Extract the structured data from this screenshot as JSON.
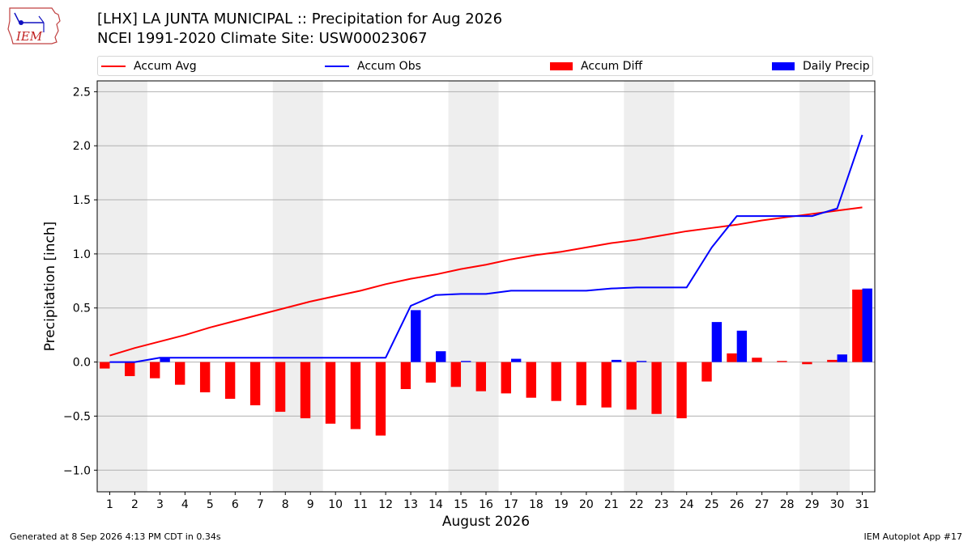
{
  "header": {
    "title_line1": "[LHX] LA JUNTA MUNICIPAL :: Precipitation for Aug 2026",
    "title_line2": "NCEI 1991-2020 Climate Site: USW00023067",
    "logo_text": "IEM"
  },
  "legend": {
    "accum_avg": "Accum Avg",
    "accum_obs": "Accum Obs",
    "accum_diff": "Accum Diff",
    "daily_precip": "Daily Precip"
  },
  "footer": {
    "generated": "Generated at 8 Sep 2026 4:13 PM CDT in 0.34s",
    "app": "IEM Autoplot App #17"
  },
  "colors": {
    "avg": "#ff0000",
    "obs": "#0000ff",
    "diff": "#ff0000",
    "daily": "#0000ff",
    "weekend_band": "#eeeeee",
    "grid": "#b0b0b0"
  },
  "chart_data": {
    "type": "bar",
    "xlabel": "August 2026",
    "ylabel": "Precipitation [inch]",
    "ylim": [
      -1.2,
      2.6
    ],
    "yticks": [
      -1.0,
      -0.5,
      0.0,
      0.5,
      1.0,
      1.5,
      2.0,
      2.5
    ],
    "ytick_labels": [
      "−1.0",
      "−0.5",
      "0.0",
      "0.5",
      "1.0",
      "1.5",
      "2.0",
      "2.5"
    ],
    "days": [
      1,
      2,
      3,
      4,
      5,
      6,
      7,
      8,
      9,
      10,
      11,
      12,
      13,
      14,
      15,
      16,
      17,
      18,
      19,
      20,
      21,
      22,
      23,
      24,
      25,
      26,
      27,
      28,
      29,
      30,
      31
    ],
    "weekend_bands": [
      [
        1,
        2
      ],
      [
        8,
        9
      ],
      [
        15,
        16
      ],
      [
        22,
        23
      ],
      [
        29,
        30
      ]
    ],
    "grid": true,
    "series": [
      {
        "name": "Accum Avg",
        "kind": "line",
        "values": [
          0.06,
          0.13,
          0.19,
          0.25,
          0.32,
          0.38,
          0.44,
          0.5,
          0.56,
          0.61,
          0.66,
          0.72,
          0.77,
          0.81,
          0.86,
          0.9,
          0.95,
          0.99,
          1.02,
          1.06,
          1.1,
          1.13,
          1.17,
          1.21,
          1.24,
          1.27,
          1.31,
          1.34,
          1.37,
          1.4,
          1.43
        ]
      },
      {
        "name": "Accum Obs",
        "kind": "line",
        "values": [
          0.0,
          0.0,
          0.04,
          0.04,
          0.04,
          0.04,
          0.04,
          0.04,
          0.04,
          0.04,
          0.04,
          0.04,
          0.52,
          0.62,
          0.63,
          0.63,
          0.66,
          0.66,
          0.66,
          0.66,
          0.68,
          0.69,
          0.69,
          0.69,
          1.06,
          1.35,
          1.35,
          1.35,
          1.35,
          1.42,
          2.1
        ]
      },
      {
        "name": "Accum Diff",
        "kind": "bar",
        "values": [
          -0.06,
          -0.13,
          -0.15,
          -0.21,
          -0.28,
          -0.34,
          -0.4,
          -0.46,
          -0.52,
          -0.57,
          -0.62,
          -0.68,
          -0.25,
          -0.19,
          -0.23,
          -0.27,
          -0.29,
          -0.33,
          -0.36,
          -0.4,
          -0.42,
          -0.44,
          -0.48,
          -0.52,
          -0.18,
          0.08,
          0.04,
          0.01,
          -0.02,
          0.02,
          0.67
        ]
      },
      {
        "name": "Daily Precip",
        "kind": "bar",
        "values": [
          0.0,
          0.0,
          0.04,
          0.0,
          0.0,
          0.0,
          0.0,
          0.0,
          0.0,
          0.0,
          0.0,
          0.0,
          0.48,
          0.1,
          0.01,
          0.0,
          0.03,
          0.0,
          0.0,
          0.0,
          0.02,
          0.01,
          0.0,
          0.0,
          0.37,
          0.29,
          0.0,
          0.0,
          0.0,
          0.07,
          0.68
        ]
      }
    ]
  }
}
